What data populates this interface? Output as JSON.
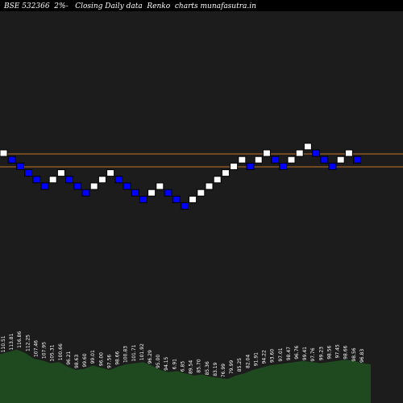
{
  "title": "BSE 532366  2%-   Closing Daily data  Renko  charts munafasutra.in",
  "colors": {
    "background": "#000000",
    "plot_background": "#1c1c1c",
    "up_brick": "#ffffff",
    "down_brick": "#0000ff",
    "brick_outline": "#000000",
    "reference_line": "#c8742a",
    "volume_fill": "#1f4a1f",
    "volume_label": "#ffffff"
  },
  "chart_data": {
    "type": "renko",
    "brick_size_percent": 2,
    "price_levels": [
      1,
      2,
      3,
      4,
      5,
      6,
      7,
      8,
      9,
      10
    ],
    "reference_lines": [
      9,
      8
    ],
    "bricks": [
      {
        "dir": "up",
        "level": 9
      },
      {
        "dir": "down",
        "level": 8
      },
      {
        "dir": "down",
        "level": 7
      },
      {
        "dir": "down",
        "level": 6
      },
      {
        "dir": "down",
        "level": 5
      },
      {
        "dir": "down",
        "level": 4
      },
      {
        "dir": "up",
        "level": 5
      },
      {
        "dir": "up",
        "level": 6
      },
      {
        "dir": "down",
        "level": 5
      },
      {
        "dir": "down",
        "level": 4
      },
      {
        "dir": "down",
        "level": 3
      },
      {
        "dir": "up",
        "level": 4
      },
      {
        "dir": "up",
        "level": 5
      },
      {
        "dir": "up",
        "level": 6
      },
      {
        "dir": "down",
        "level": 5
      },
      {
        "dir": "down",
        "level": 4
      },
      {
        "dir": "down",
        "level": 3
      },
      {
        "dir": "down",
        "level": 2
      },
      {
        "dir": "up",
        "level": 3
      },
      {
        "dir": "up",
        "level": 4
      },
      {
        "dir": "down",
        "level": 3
      },
      {
        "dir": "down",
        "level": 2
      },
      {
        "dir": "down",
        "level": 1
      },
      {
        "dir": "up",
        "level": 2
      },
      {
        "dir": "up",
        "level": 3
      },
      {
        "dir": "up",
        "level": 4
      },
      {
        "dir": "up",
        "level": 5
      },
      {
        "dir": "up",
        "level": 6
      },
      {
        "dir": "up",
        "level": 7
      },
      {
        "dir": "up",
        "level": 8
      },
      {
        "dir": "down",
        "level": 7
      },
      {
        "dir": "up",
        "level": 8
      },
      {
        "dir": "up",
        "level": 9
      },
      {
        "dir": "down",
        "level": 8
      },
      {
        "dir": "down",
        "level": 7
      },
      {
        "dir": "up",
        "level": 8
      },
      {
        "dir": "up",
        "level": 9
      },
      {
        "dir": "up",
        "level": 10
      },
      {
        "dir": "down",
        "level": 9
      },
      {
        "dir": "down",
        "level": 8
      },
      {
        "dir": "down",
        "level": 7
      },
      {
        "dir": "up",
        "level": 8
      },
      {
        "dir": "up",
        "level": 9
      },
      {
        "dir": "down",
        "level": 8
      }
    ],
    "volume_labels": [
      "110.51",
      "113.81",
      "116.86",
      "112.25",
      "107.46",
      "107.95",
      "105.31",
      "100.66",
      "96.21",
      "98.63",
      "99.60",
      "99.01",
      "96.00",
      "97.56",
      "98.66",
      "100.83",
      "101.71",
      "101.92",
      "96.29",
      "95.00",
      "94.15",
      "6.91",
      "6.85",
      "89.54",
      "85.70",
      "85.36",
      "83.19",
      "76.99",
      "79.99",
      "85.25",
      "82.04",
      "91.91",
      "94.22",
      "93.60",
      "97.01",
      "98.47",
      "96.76",
      "99.41",
      "97.76",
      "99.23",
      "98.56",
      "97.45",
      "98.66",
      "98.56",
      "96.83"
    ],
    "volume_profile": [
      0.58,
      0.62,
      0.66,
      0.6,
      0.5,
      0.47,
      0.42,
      0.44,
      0.36,
      0.3,
      0.32,
      0.38,
      0.34,
      0.3,
      0.36,
      0.4,
      0.42,
      0.44,
      0.38,
      0.3,
      0.26,
      0.28,
      0.24,
      0.2,
      0.22,
      0.18,
      0.16,
      0.14,
      0.2,
      0.24,
      0.3,
      0.34,
      0.38,
      0.4,
      0.42,
      0.44,
      0.46,
      0.44,
      0.42,
      0.44,
      0.46,
      0.48,
      0.46,
      0.42,
      0.4
    ]
  }
}
